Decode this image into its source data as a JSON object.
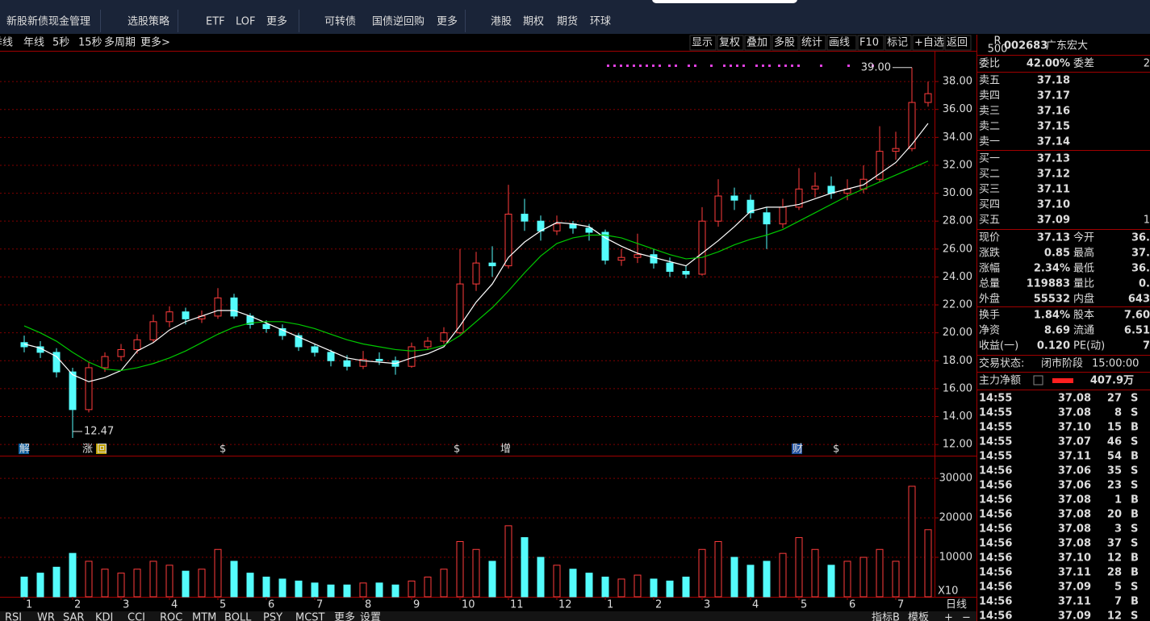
{
  "nav": {
    "items": [
      "新股新债",
      "现金管理",
      "选股策略",
      "ETF",
      "LOF",
      "更多",
      "可转债",
      "国债逆回购",
      "更多",
      "港股",
      "期权",
      "期货",
      "环球"
    ]
  },
  "toolbar": {
    "left": [
      "季线",
      "年线",
      "5秒",
      "15秒",
      "多周期",
      "更多>"
    ],
    "right": [
      "显示",
      "复权",
      "叠加",
      "多股",
      "统计",
      "画线",
      "F10",
      "标记",
      "+自选",
      "返回"
    ]
  },
  "chart_data": [
    {
      "type": "candlestick",
      "categories": [
        "1",
        null,
        null,
        "2",
        null,
        null,
        "3",
        null,
        null,
        "4",
        null,
        null,
        "5",
        null,
        null,
        "6",
        null,
        null,
        "7",
        null,
        null,
        "8",
        null,
        null,
        "9",
        null,
        null,
        "10",
        null,
        null,
        "11",
        null,
        null,
        "12",
        null,
        null,
        "1",
        null,
        null,
        "2",
        null,
        null,
        "3",
        null,
        null,
        "4",
        null,
        null,
        "5",
        null,
        null,
        "6",
        null,
        null,
        "7",
        null,
        null
      ],
      "ohlc": [
        [
          19.3,
          19.8,
          18.6,
          19.0
        ],
        [
          19.0,
          19.4,
          18.2,
          18.6
        ],
        [
          18.6,
          18.9,
          16.8,
          17.2
        ],
        [
          17.2,
          17.5,
          12.47,
          14.5
        ],
        [
          14.5,
          17.9,
          14.3,
          17.5
        ],
        [
          17.5,
          18.6,
          17.2,
          18.3
        ],
        [
          18.3,
          19.2,
          18.0,
          18.8
        ],
        [
          18.8,
          19.9,
          18.5,
          19.5
        ],
        [
          19.5,
          21.3,
          19.3,
          20.8
        ],
        [
          20.8,
          21.9,
          20.4,
          21.5
        ],
        [
          21.5,
          21.8,
          20.6,
          21.0
        ],
        [
          21.0,
          21.6,
          20.7,
          21.2
        ],
        [
          21.2,
          23.2,
          21.0,
          22.5
        ],
        [
          22.5,
          22.8,
          21.0,
          21.2
        ],
        [
          21.2,
          21.4,
          20.3,
          20.6
        ],
        [
          20.6,
          20.9,
          20.0,
          20.3
        ],
        [
          20.3,
          20.6,
          19.5,
          19.8
        ],
        [
          19.8,
          20.0,
          18.7,
          19.0
        ],
        [
          19.0,
          19.2,
          18.3,
          18.6
        ],
        [
          18.6,
          18.8,
          17.6,
          18.0
        ],
        [
          18.0,
          18.4,
          17.3,
          17.6
        ],
        [
          17.6,
          18.7,
          17.4,
          18.1
        ],
        [
          18.1,
          18.6,
          17.7,
          18.0
        ],
        [
          18.0,
          18.3,
          17.0,
          17.6
        ],
        [
          17.6,
          19.3,
          17.5,
          19.0
        ],
        [
          19.0,
          19.7,
          18.8,
          19.4
        ],
        [
          19.4,
          20.4,
          19.2,
          20.0
        ],
        [
          20.0,
          26.0,
          19.9,
          23.5
        ],
        [
          23.5,
          25.8,
          23.0,
          25.0
        ],
        [
          25.0,
          26.2,
          24.0,
          24.8
        ],
        [
          24.8,
          30.6,
          24.6,
          28.5
        ],
        [
          28.5,
          29.6,
          27.3,
          28.0
        ],
        [
          28.0,
          28.4,
          26.6,
          27.3
        ],
        [
          27.3,
          28.4,
          27.0,
          27.8
        ],
        [
          27.8,
          28.0,
          27.1,
          27.5
        ],
        [
          27.5,
          27.8,
          26.6,
          27.2
        ],
        [
          27.2,
          27.4,
          24.9,
          25.2
        ],
        [
          25.2,
          26.0,
          24.8,
          25.4
        ],
        [
          25.4,
          27.1,
          25.0,
          25.6
        ],
        [
          25.6,
          26.0,
          24.6,
          25.0
        ],
        [
          25.0,
          25.4,
          24.0,
          24.4
        ],
        [
          24.4,
          24.8,
          23.9,
          24.2
        ],
        [
          24.2,
          29.0,
          24.1,
          28.0
        ],
        [
          28.0,
          31.0,
          27.6,
          29.8
        ],
        [
          29.8,
          30.4,
          28.8,
          29.5
        ],
        [
          29.5,
          29.9,
          28.2,
          28.6
        ],
        [
          28.6,
          29.0,
          26.0,
          27.8
        ],
        [
          27.8,
          29.6,
          27.5,
          29.0
        ],
        [
          29.0,
          31.8,
          28.8,
          30.3
        ],
        [
          30.3,
          31.5,
          29.7,
          30.5
        ],
        [
          30.5,
          31.2,
          29.6,
          30.0
        ],
        [
          30.0,
          31.0,
          29.5,
          30.3
        ],
        [
          30.3,
          32.0,
          30.0,
          31.0
        ],
        [
          31.0,
          34.8,
          30.8,
          33.0
        ],
        [
          33.0,
          34.4,
          32.4,
          33.2
        ],
        [
          33.2,
          39.0,
          33.0,
          36.5
        ],
        [
          36.5,
          38.0,
          36.2,
          37.13
        ]
      ],
      "up_color": "#ff3c3c",
      "down_color": "#54fcfc",
      "lines": [
        {
          "color": "#ffffff",
          "values": [
            19.2,
            18.9,
            18.3,
            17.0,
            16.5,
            16.8,
            17.3,
            18.7,
            19.3,
            20.2,
            20.8,
            21.2,
            21.6,
            21.6,
            21.2,
            20.7,
            20.2,
            19.7,
            19.2,
            18.7,
            18.2,
            18.0,
            17.9,
            17.8,
            18.2,
            18.5,
            19.0,
            20.5,
            22.2,
            23.5,
            25.4,
            26.5,
            27.3,
            27.9,
            27.8,
            27.6,
            26.8,
            26.2,
            25.7,
            25.4,
            25.1,
            24.8,
            25.7,
            26.6,
            27.6,
            28.7,
            29.0,
            29.0,
            29.2,
            29.6,
            30.0,
            30.3,
            30.6,
            31.4,
            32.2,
            33.5,
            35.0
          ]
        },
        {
          "color": "#00c800",
          "values": [
            20.5,
            20.0,
            19.4,
            18.6,
            17.9,
            17.4,
            17.3,
            17.5,
            17.8,
            18.2,
            18.7,
            19.3,
            19.9,
            20.4,
            20.7,
            20.8,
            20.8,
            20.6,
            20.3,
            19.9,
            19.5,
            19.2,
            19.0,
            18.8,
            18.7,
            18.8,
            19.1,
            19.8,
            20.8,
            21.8,
            23.0,
            24.3,
            25.5,
            26.4,
            26.8,
            27.0,
            27.0,
            26.8,
            26.4,
            26.0,
            25.6,
            25.3,
            25.4,
            25.8,
            26.3,
            26.7,
            27.0,
            27.4,
            28.0,
            28.6,
            29.2,
            29.8,
            30.3,
            30.8,
            31.3,
            31.8,
            32.3
          ]
        }
      ],
      "ylim": [
        11.2,
        40.2
      ],
      "yticks": [
        {
          "value": 12,
          "label": "12.00"
        },
        {
          "value": 14,
          "label": "14.00"
        },
        {
          "value": 16,
          "label": "16.00"
        },
        {
          "value": 18,
          "label": "18.00"
        },
        {
          "value": 20,
          "label": "20.00"
        },
        {
          "value": 22,
          "label": "22.00"
        },
        {
          "value": 24,
          "label": "24.00"
        },
        {
          "value": 26,
          "label": "26.00"
        },
        {
          "value": 28,
          "label": "28.00"
        },
        {
          "value": 30,
          "label": "30.00"
        },
        {
          "value": 32,
          "label": "32.00"
        },
        {
          "value": 34,
          "label": "34.00"
        },
        {
          "value": 36,
          "label": "36.00"
        },
        {
          "value": 38,
          "label": "38.00"
        }
      ],
      "grid": true,
      "low_label": 12.47,
      "high_label": {
        "value": 39,
        "label": "39.00"
      },
      "events": [
        "解",
        "涨",
        "回",
        "$",
        "$",
        "增",
        "财",
        "$"
      ]
    },
    {
      "type": "bar",
      "values": [
        5000,
        6000,
        7500,
        11000,
        9000,
        7000,
        6000,
        7000,
        9000,
        8000,
        6500,
        7000,
        12000,
        9000,
        6000,
        5000,
        4500,
        4000,
        3500,
        3000,
        3000,
        3500,
        3500,
        3000,
        4000,
        5000,
        7000,
        14000,
        12000,
        9000,
        18000,
        15000,
        10000,
        8000,
        7000,
        6000,
        5000,
        4500,
        5500,
        4500,
        4000,
        5000,
        12000,
        14000,
        10000,
        8000,
        9000,
        11000,
        15000,
        12000,
        8000,
        9000,
        10000,
        12000,
        9000,
        28000,
        17000
      ],
      "ylim": [
        0,
        35750
      ],
      "yticks": [
        10000,
        20000,
        30000
      ],
      "grid": true,
      "unit_label": "X10"
    }
  ],
  "period_label": "日线",
  "tabs": [
    "RSI",
    "WR",
    "SAR",
    "KDJ",
    "CCI",
    "ROC",
    "MTM",
    "BOLL",
    "PSY",
    "MCST",
    "更多",
    "设置"
  ],
  "tabs_right": [
    "指标B",
    "模板",
    "+",
    "−"
  ],
  "quote": {
    "badge_top": "R",
    "badge_bottom": "500",
    "code": "002683",
    "name": "广东宏大",
    "ratio_label": "委比",
    "ratio": "42.00%",
    "diff_label": "委差",
    "diff": "2",
    "asks": [
      {
        "label": "卖五",
        "price": "37.18"
      },
      {
        "label": "卖四",
        "price": "37.17"
      },
      {
        "label": "卖三",
        "price": "37.16"
      },
      {
        "label": "卖二",
        "price": "37.15"
      },
      {
        "label": "卖一",
        "price": "37.14"
      }
    ],
    "bids": [
      {
        "label": "买一",
        "price": "37.13"
      },
      {
        "label": "买二",
        "price": "37.12"
      },
      {
        "label": "买三",
        "price": "37.11"
      },
      {
        "label": "买四",
        "price": "37.10"
      },
      {
        "label": "买五",
        "price": "37.09",
        "volume": "1"
      }
    ],
    "stats": [
      [
        "现价",
        "37.13",
        "今开",
        "36."
      ],
      [
        "涨跌",
        "0.85",
        "最高",
        "37."
      ],
      [
        "涨幅",
        "2.34%",
        "最低",
        "36."
      ],
      [
        "总量",
        "119883",
        "量比",
        "0."
      ],
      [
        "外盘",
        "55532",
        "内盘",
        "643"
      ],
      [
        "换手",
        "1.84%",
        "股本",
        "7.60"
      ],
      [
        "净资",
        "8.69",
        "流通",
        "6.51"
      ],
      [
        "收益(一)",
        "0.120",
        "PE(动)",
        "7"
      ]
    ],
    "status": {
      "label": "交易状态:",
      "value": "闭市阶段",
      "time": "15:00:00"
    },
    "main_flow": {
      "label": "主力净额",
      "value": "407.9万"
    },
    "trades": [
      [
        "14:55",
        "37.08",
        "27",
        "S"
      ],
      [
        "14:55",
        "37.08",
        "8",
        "S"
      ],
      [
        "14:55",
        "37.10",
        "15",
        "B"
      ],
      [
        "14:55",
        "37.07",
        "46",
        "S"
      ],
      [
        "14:55",
        "37.11",
        "54",
        "B"
      ],
      [
        "14:56",
        "37.06",
        "35",
        "S"
      ],
      [
        "14:56",
        "37.06",
        "23",
        "S"
      ],
      [
        "14:56",
        "37.08",
        "1",
        "B"
      ],
      [
        "14:56",
        "37.08",
        "20",
        "B"
      ],
      [
        "14:56",
        "37.08",
        "3",
        "S"
      ],
      [
        "14:56",
        "37.08",
        "37",
        "S"
      ],
      [
        "14:56",
        "37.10",
        "12",
        "B"
      ],
      [
        "14:56",
        "37.11",
        "28",
        "B"
      ],
      [
        "14:56",
        "37.09",
        "5",
        "S"
      ],
      [
        "14:56",
        "37.11",
        "7",
        "B"
      ],
      [
        "14:56",
        "37.09",
        "12",
        "S"
      ]
    ]
  }
}
